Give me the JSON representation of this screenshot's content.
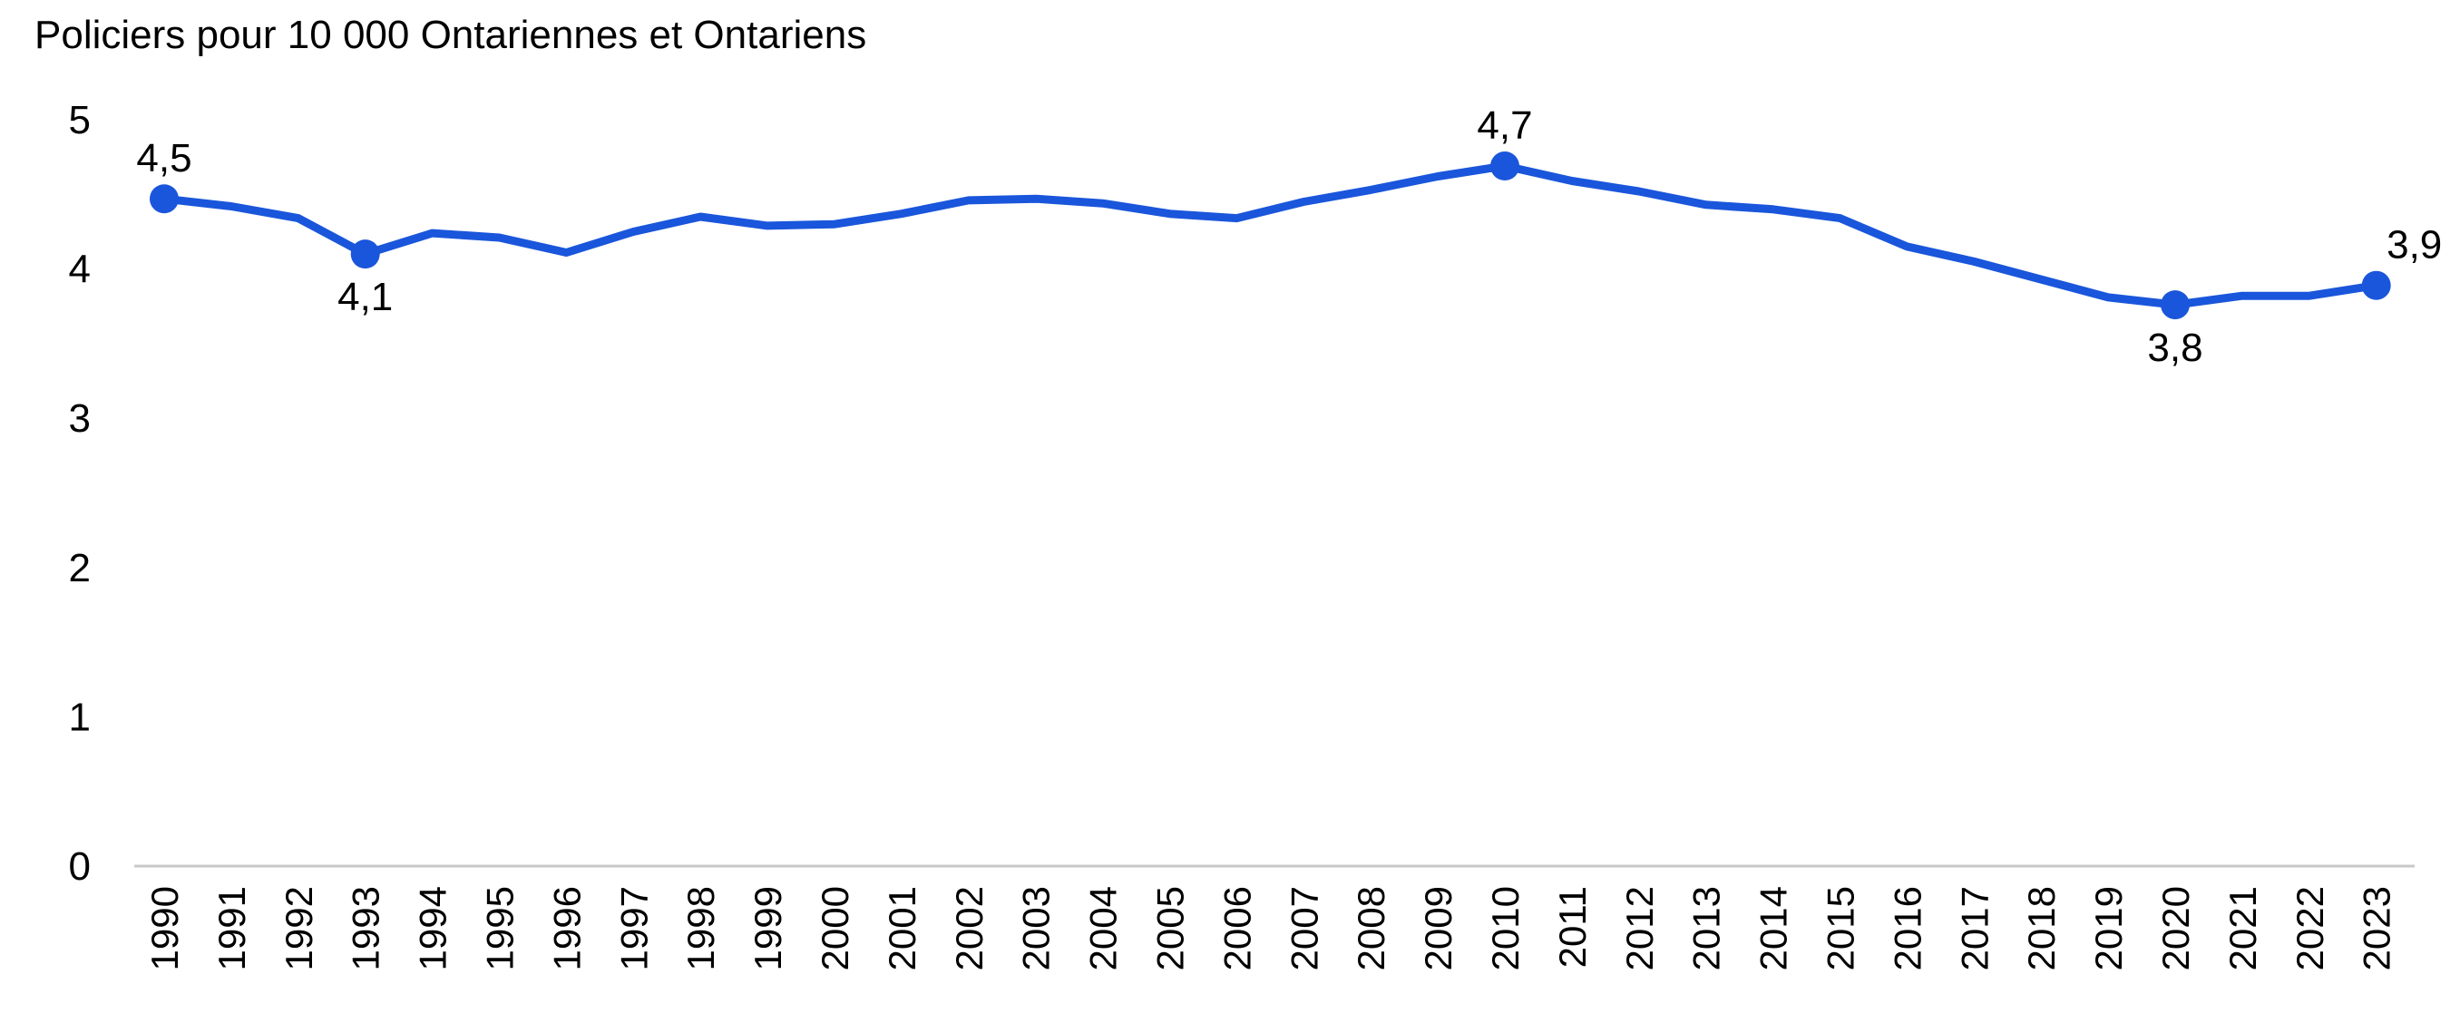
{
  "chart_data": {
    "type": "line",
    "title": "Policiers pour 10 000 Ontariennes et Ontariens",
    "x": [
      "1990",
      "1991",
      "1992",
      "1993",
      "1994",
      "1995",
      "1996",
      "1997",
      "1998",
      "1999",
      "2000",
      "2001",
      "2002",
      "2003",
      "2004",
      "2005",
      "2006",
      "2007",
      "2008",
      "2009",
      "2010",
      "2011",
      "2012",
      "2013",
      "2014",
      "2015",
      "2016",
      "2017",
      "2018",
      "2019",
      "2020",
      "2021",
      "2022",
      "2023"
    ],
    "series": [
      {
        "values": [
          4.47,
          4.42,
          4.34,
          4.1,
          4.24,
          4.21,
          4.11,
          4.25,
          4.35,
          4.29,
          4.3,
          4.37,
          4.46,
          4.47,
          4.44,
          4.37,
          4.34,
          4.45,
          4.53,
          4.62,
          4.69,
          4.59,
          4.52,
          4.43,
          4.4,
          4.34,
          4.15,
          4.05,
          3.93,
          3.81,
          3.76,
          3.82,
          3.82,
          3.89
        ],
        "color": "#1a56db"
      }
    ],
    "data_labels": [
      {
        "x": "1990",
        "text": "4,5",
        "position": "above"
      },
      {
        "x": "1993",
        "text": "4,1",
        "position": "below"
      },
      {
        "x": "2010",
        "text": "4,7",
        "position": "above"
      },
      {
        "x": "2020",
        "text": "3,8",
        "position": "below"
      },
      {
        "x": "2023",
        "text": "3,9",
        "position": "above"
      }
    ],
    "yticks": [
      "0",
      "1",
      "2",
      "3",
      "4",
      "5"
    ],
    "ylim": [
      0,
      5
    ],
    "grid": false,
    "legend": "none"
  }
}
